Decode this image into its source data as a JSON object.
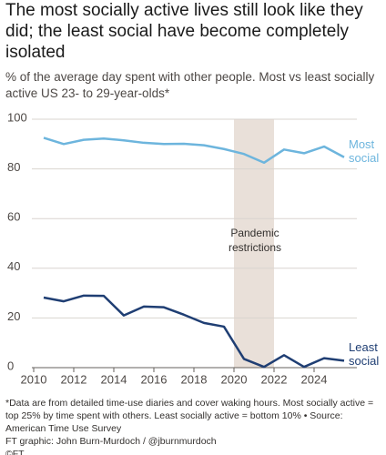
{
  "chart_data": {
    "type": "line",
    "title": "The most socially active lives still look like they did; the least social have become completely isolated",
    "subtitle": "% of the average day spent with other people. Most vs least socially active US 23- to 29-year-olds*",
    "x": [
      2010.5,
      2011.5,
      2012.5,
      2013.5,
      2014.5,
      2015.5,
      2016.5,
      2017.5,
      2018.5,
      2019.5,
      2020.5,
      2021.5,
      2022.5,
      2023.5,
      2024.5,
      2025.5
    ],
    "series": [
      {
        "name": "Most social",
        "color": "#6db5dd",
        "values": [
          92.5,
          90,
          91.7,
          92.2,
          91.5,
          90.5,
          90,
          90.1,
          89.5,
          88,
          86,
          82.5,
          87.8,
          86.3,
          89,
          84.7
        ]
      },
      {
        "name": "Least social",
        "color": "#1f3e73",
        "values": [
          28.2,
          26.7,
          29,
          28.9,
          21,
          24.6,
          24.3,
          21.3,
          18,
          16.5,
          3.5,
          0.3,
          5,
          0.3,
          3.8,
          2.8
        ]
      }
    ],
    "shade": {
      "x": [
        2020,
        2022
      ],
      "label": "Pandemic restrictions",
      "color": "#e9e0d9"
    },
    "xlim": [
      2010,
      2025.8
    ],
    "xticks": [
      2010,
      2012,
      2014,
      2016,
      2018,
      2020,
      2022,
      2024
    ],
    "ylim": [
      0,
      100
    ],
    "yticks": [
      0,
      20,
      40,
      60,
      80,
      100
    ],
    "grid": true,
    "footnote": "*Data are from detailed time-use diaries and cover waking hours. Most socially active = top 25% by time spent with others. Least socially active = bottom 10% • Source: American Time Use Survey",
    "credit": "FT graphic: John Burn-Murdoch / @jburnmurdoch",
    "logo": "©FT"
  }
}
